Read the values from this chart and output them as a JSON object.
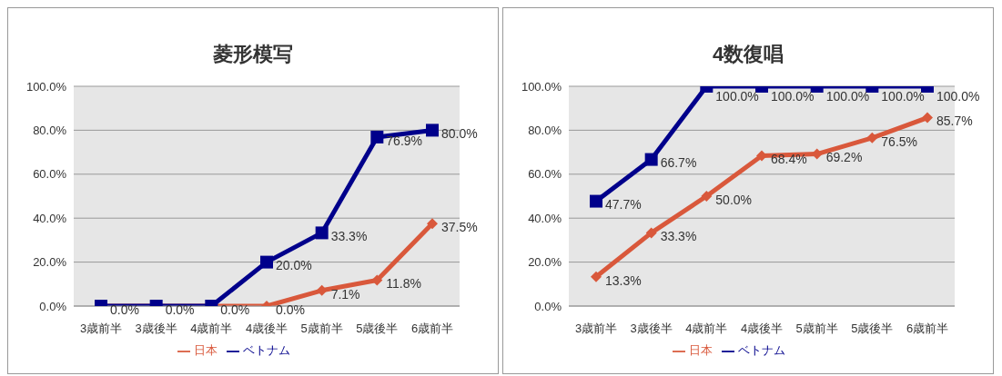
{
  "chart_data": [
    {
      "type": "line",
      "title": "菱形模写",
      "categories": [
        "3歳前半",
        "3歳後半",
        "4歳前半",
        "4歳後半",
        "5歳前半",
        "5歳後半",
        "6歳前半"
      ],
      "series": [
        {
          "name": "日本",
          "color": "#d9583b",
          "marker": "diamond",
          "values": [
            0,
            0,
            0,
            0,
            7.1,
            11.8,
            37.5
          ],
          "value_labels": [
            null,
            null,
            null,
            "0.0%",
            "7.1%",
            "11.8%",
            "37.5%"
          ]
        },
        {
          "name": "ベトナム",
          "color": "#00008b",
          "marker": "square",
          "values": [
            0,
            0,
            0,
            20.0,
            33.3,
            76.9,
            80.0
          ],
          "value_labels": [
            "0.0%",
            "0.0%",
            "0.0%",
            "20.0%",
            "33.3%",
            "76.9%",
            "80.0%"
          ]
        }
      ],
      "ylim": [
        0,
        100
      ],
      "yticks": [
        {
          "value": 0,
          "label": "0.0%"
        },
        {
          "value": 20,
          "label": "20.0%"
        },
        {
          "value": 40,
          "label": "40.0%"
        },
        {
          "value": 60,
          "label": "60.0%"
        },
        {
          "value": 80,
          "label": "80.0%"
        },
        {
          "value": 100,
          "label": "100.0%"
        }
      ],
      "grid": "y",
      "legend": "bottom"
    },
    {
      "type": "line",
      "title": "4数復唱",
      "categories": [
        "3歳前半",
        "3歳後半",
        "4歳前半",
        "4歳後半",
        "5歳前半",
        "5歳後半",
        "6歳前半"
      ],
      "series": [
        {
          "name": "日本",
          "color": "#d9583b",
          "marker": "diamond",
          "values": [
            13.3,
            33.3,
            50.0,
            68.4,
            69.2,
            76.5,
            85.7
          ],
          "value_labels": [
            "13.3%",
            "33.3%",
            "50.0%",
            "68.4%",
            "69.2%",
            "76.5%",
            "85.7%"
          ]
        },
        {
          "name": "ベトナム",
          "color": "#00008b",
          "marker": "square",
          "values": [
            47.7,
            66.7,
            100,
            100,
            100,
            100,
            100
          ],
          "value_labels": [
            "47.7%",
            "66.7%",
            "100.0%",
            "100.0%",
            "100.0%",
            "100.0%",
            "100.0%"
          ]
        }
      ],
      "ylim": [
        0,
        100
      ],
      "yticks": [
        {
          "value": 0,
          "label": "0.0%"
        },
        {
          "value": 20,
          "label": "20.0%"
        },
        {
          "value": 40,
          "label": "40.0%"
        },
        {
          "value": 60,
          "label": "60.0%"
        },
        {
          "value": 80,
          "label": "80.0%"
        },
        {
          "value": 100,
          "label": "100.0%"
        }
      ],
      "grid": "y",
      "legend": "bottom"
    }
  ]
}
